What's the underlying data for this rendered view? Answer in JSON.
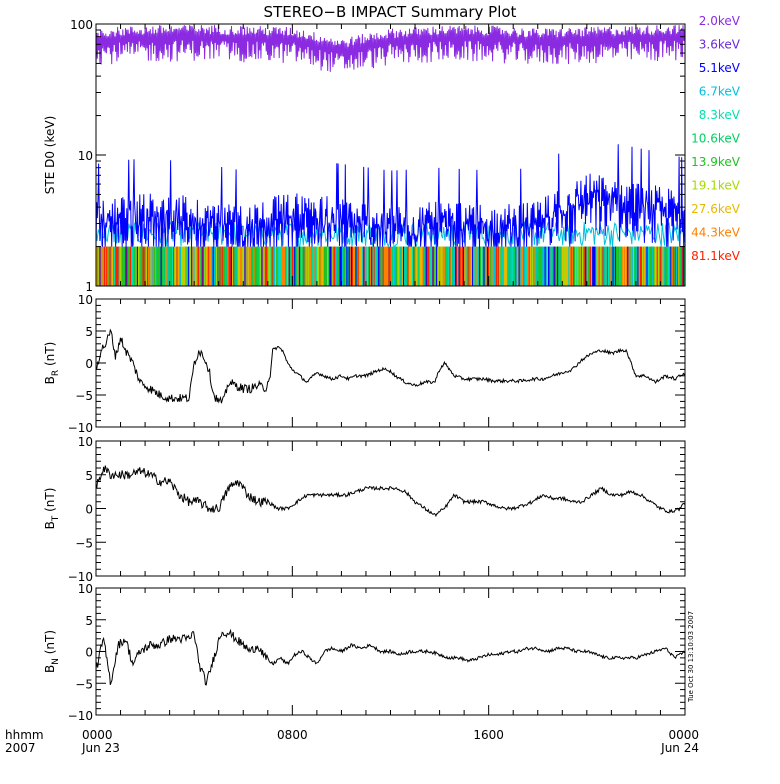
{
  "title": "STEREO−B IMPACT Summary Plot",
  "timestamp": "Tue Oct 30 13:10:03 2007",
  "x_axis": {
    "label_hhmm": "hhmm",
    "label_year": "2007",
    "ticks": [
      {
        "hour": 0,
        "time": "0000",
        "date": "Jun 23"
      },
      {
        "hour": 8,
        "time": "0800",
        "date": ""
      },
      {
        "hour": 16,
        "time": "1600",
        "date": ""
      },
      {
        "hour": 24,
        "time": "0000",
        "date": "Jun 24"
      }
    ]
  },
  "colors": {
    "channels": [
      "#8a2be2",
      "#6a28d8",
      "#0000ff",
      "#00c0e0",
      "#00e0b0",
      "#00d060",
      "#22c022",
      "#a8d800",
      "#e8b800",
      "#ff8000",
      "#ff2000"
    ],
    "line": "#000000"
  },
  "chart_data": [
    {
      "type": "line",
      "ylabel": "STE D0 (keV)",
      "yscale": "log",
      "ylim": [
        1,
        100
      ],
      "yticks": [
        "1",
        "10",
        "100"
      ],
      "xlim": [
        0,
        24
      ],
      "legend": [
        {
          "name": "2.0keV"
        },
        {
          "name": "3.6keV"
        },
        {
          "name": "5.1keV"
        },
        {
          "name": "6.7keV"
        },
        {
          "name": "8.3keV"
        },
        {
          "name": "10.6keV"
        },
        {
          "name": "13.9keV"
        },
        {
          "name": "19.1keV"
        },
        {
          "name": "27.6keV"
        },
        {
          "name": "44.3keV"
        },
        {
          "name": "81.1keV"
        }
      ],
      "series": [
        {
          "name": "2.0keV",
          "x": [
            0,
            2,
            4,
            6,
            8,
            10,
            12,
            14,
            16,
            18,
            20,
            22,
            24
          ],
          "y": [
            75,
            78,
            80,
            78,
            76,
            62,
            74,
            78,
            78,
            74,
            76,
            78,
            80
          ]
        },
        {
          "name": "5.1keV",
          "x": [
            0,
            2,
            4,
            6,
            8,
            10,
            12,
            14,
            16,
            18,
            20,
            22,
            24
          ],
          "y": [
            4.5,
            5,
            4.6,
            4,
            5,
            4.5,
            4,
            4.2,
            4,
            4.2,
            7,
            6,
            5
          ]
        }
      ]
    },
    {
      "type": "line",
      "ylabel": "BR (nT)",
      "ylabel_main": "B",
      "ylabel_sub": "R",
      "ylabel_unit": " (nT)",
      "ylim": [
        -10,
        10
      ],
      "yticks": [
        "−10",
        "−5",
        "0",
        "5",
        "10"
      ],
      "x": [
        0,
        0.2,
        0.4,
        0.6,
        0.8,
        1,
        1.2,
        1.5,
        1.8,
        2.2,
        2.6,
        3,
        3.4,
        3.8,
        4,
        4.2,
        4.4,
        4.6,
        4.8,
        5,
        5.2,
        5.4,
        5.7,
        6,
        6.3,
        6.6,
        6.9,
        7.1,
        7.2,
        7.4,
        7.6,
        7.8,
        8,
        8.3,
        8.6,
        9,
        9.3,
        9.6,
        10,
        10.3,
        10.6,
        11,
        11.3,
        11.6,
        11.9,
        12.2,
        12.6,
        13,
        13.4,
        13.8,
        14,
        14.2,
        14.4,
        14.6,
        15,
        15.4,
        15.8,
        16.2,
        16.6,
        17,
        17.4,
        17.8,
        18.2,
        18.6,
        19,
        19.4,
        19.8,
        20.2,
        20.6,
        21,
        21.4,
        21.6,
        21.8,
        22,
        22.4,
        22.8,
        23.2,
        23.6,
        24
      ],
      "y": [
        -1,
        2,
        3,
        5,
        1,
        4,
        2,
        0,
        -3,
        -4,
        -5,
        -5.5,
        -5.5,
        -5.5,
        0,
        2,
        1,
        -1,
        -5,
        -6,
        -6,
        -3,
        -3.5,
        -4,
        -4,
        -3.5,
        -4,
        -2,
        2,
        2.5,
        2,
        0,
        -1,
        -2,
        -3,
        -1.5,
        -2,
        -2.5,
        -2,
        -2.5,
        -2,
        -2,
        -1.5,
        -1,
        -1,
        -2,
        -3,
        -3.5,
        -3,
        -3,
        -1,
        0,
        -1,
        -2,
        -2.5,
        -2.5,
        -2.5,
        -2.8,
        -2.8,
        -2.8,
        -2.8,
        -2.5,
        -2.5,
        -2,
        -1.5,
        -1,
        0.5,
        1.5,
        2,
        1.5,
        2,
        2,
        0,
        -2,
        -2,
        -3,
        -2,
        -2.5,
        -1.5
      ]
    },
    {
      "type": "line",
      "ylabel": "BT (nT)",
      "ylabel_main": "B",
      "ylabel_sub": "T",
      "ylabel_unit": " (nT)",
      "ylim": [
        -10,
        10
      ],
      "yticks": [
        "−10",
        "−5",
        "0",
        "5",
        "10"
      ],
      "x": [
        0,
        0.3,
        0.6,
        1,
        1.4,
        1.8,
        2.2,
        2.6,
        3,
        3.4,
        3.8,
        4.2,
        4.6,
        5,
        5.4,
        5.8,
        6.2,
        6.6,
        7,
        7.4,
        7.8,
        8.2,
        8.6,
        9,
        9.4,
        9.8,
        10.2,
        10.6,
        11,
        11.4,
        11.8,
        12.2,
        12.6,
        13,
        13.4,
        13.8,
        14.2,
        14.6,
        15,
        15.4,
        15.8,
        16.2,
        16.6,
        17,
        17.4,
        17.8,
        18.2,
        18.6,
        19,
        19.4,
        19.8,
        20.2,
        20.6,
        21,
        21.4,
        21.8,
        22.2,
        22.6,
        23,
        23.4,
        23.8,
        24
      ],
      "y": [
        3,
        6,
        5,
        5,
        5,
        5.5,
        5,
        4,
        4,
        2,
        1,
        1,
        0,
        0,
        3,
        4,
        2,
        1,
        1,
        0,
        0,
        1,
        2,
        2,
        2,
        2,
        2,
        2.5,
        3,
        3,
        3,
        3,
        2.5,
        1,
        0,
        -1,
        0,
        2,
        1,
        1,
        1,
        0.5,
        0,
        0,
        0.5,
        1,
        2,
        1.5,
        1.5,
        1,
        1,
        2,
        3,
        2,
        2,
        2.5,
        2,
        1,
        0,
        -0.5,
        0,
        1
      ]
    },
    {
      "type": "line",
      "ylabel": "BN (nT)",
      "ylabel_main": "B",
      "ylabel_sub": "N",
      "ylabel_unit": " (nT)",
      "ylim": [
        -10,
        10
      ],
      "yticks": [
        "−10",
        "−5",
        "0",
        "5",
        "10"
      ],
      "x": [
        0,
        0.3,
        0.6,
        0.9,
        1.2,
        1.5,
        1.8,
        2.2,
        2.6,
        3,
        3.4,
        3.8,
        4,
        4.2,
        4.5,
        4.8,
        5.1,
        5.4,
        5.7,
        6,
        6.3,
        6.6,
        6.9,
        7.2,
        7.5,
        7.8,
        8.1,
        8.4,
        8.7,
        9,
        9.3,
        9.6,
        10,
        10.4,
        10.8,
        11.2,
        11.6,
        12,
        12.4,
        12.8,
        13.2,
        13.6,
        14,
        14.4,
        14.8,
        15.2,
        15.6,
        16,
        16.4,
        16.8,
        17.2,
        17.6,
        18,
        18.4,
        18.8,
        19.2,
        19.6,
        20,
        20.4,
        20.8,
        21.2,
        21.6,
        22,
        22.4,
        22.8,
        23.2,
        23.6,
        24
      ],
      "y": [
        -3,
        2,
        -5,
        1,
        2,
        -2,
        0,
        1,
        1,
        2,
        2,
        2,
        3,
        -2,
        -5,
        -1,
        3,
        3,
        2,
        1,
        0,
        1,
        -1,
        -2,
        -1,
        -2,
        -0.5,
        0,
        -1,
        -2,
        0,
        0.5,
        0,
        1,
        0.5,
        1,
        0,
        0,
        -0.5,
        0,
        0,
        0,
        -0.5,
        -1,
        -1,
        -1.5,
        -1,
        -0.5,
        -0.5,
        0,
        0,
        0.5,
        0.5,
        0,
        0.5,
        0.5,
        0,
        0,
        -0.5,
        -1,
        -1,
        -1,
        -1,
        -0.5,
        0,
        0.5,
        -1,
        0
      ]
    }
  ]
}
